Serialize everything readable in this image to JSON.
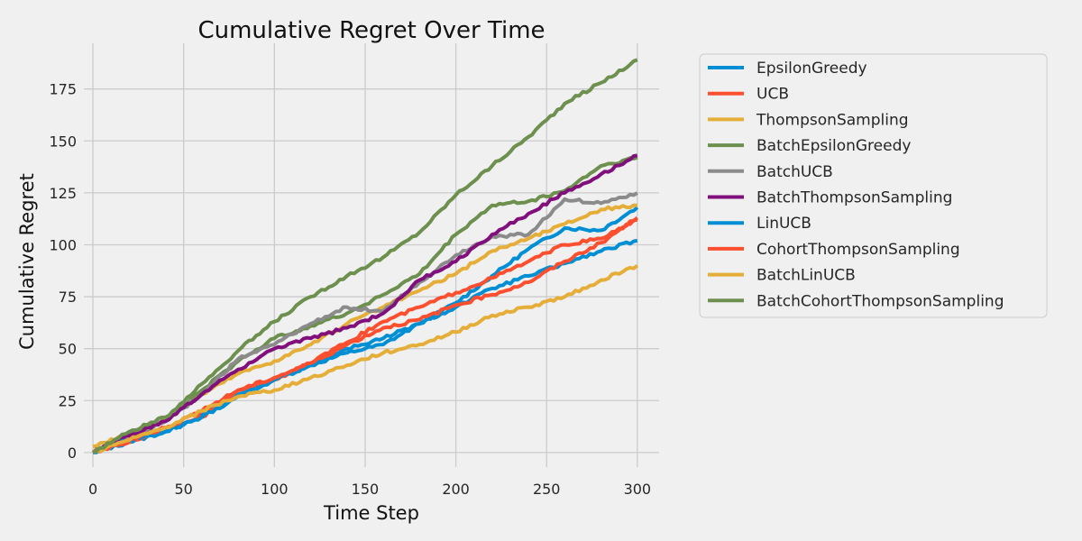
{
  "chart_data": {
    "type": "line",
    "title": "Cumulative Regret Over Time",
    "xlabel": "Time Step",
    "ylabel": "Cumulative Regret",
    "xlim": [
      -5,
      312
    ],
    "ylim": [
      -7,
      197
    ],
    "xticks": [
      0,
      50,
      100,
      150,
      200,
      250,
      300
    ],
    "yticks": [
      0,
      25,
      50,
      75,
      100,
      125,
      150,
      175
    ],
    "grid": true,
    "legend_position": "outside-right",
    "series": [
      {
        "name": "EpsilonGreedy",
        "color": "#008fd5",
        "points": [
          [
            0,
            0
          ],
          [
            20,
            5
          ],
          [
            40,
            10
          ],
          [
            60,
            18
          ],
          [
            80,
            28
          ],
          [
            100,
            35
          ],
          [
            120,
            42
          ],
          [
            140,
            48
          ],
          [
            160,
            52
          ],
          [
            180,
            62
          ],
          [
            200,
            72
          ],
          [
            220,
            85
          ],
          [
            240,
            98
          ],
          [
            260,
            108
          ],
          [
            280,
            107
          ],
          [
            300,
            118
          ]
        ]
      },
      {
        "name": "UCB",
        "color": "#fc4f30",
        "points": [
          [
            0,
            0
          ],
          [
            20,
            5
          ],
          [
            40,
            12
          ],
          [
            60,
            17
          ],
          [
            80,
            30
          ],
          [
            100,
            35
          ],
          [
            120,
            43
          ],
          [
            140,
            53
          ],
          [
            160,
            63
          ],
          [
            180,
            70
          ],
          [
            200,
            77
          ],
          [
            220,
            84
          ],
          [
            240,
            92
          ],
          [
            260,
            100
          ],
          [
            280,
            103
          ],
          [
            300,
            112
          ]
        ]
      },
      {
        "name": "ThompsonSampling",
        "color": "#e5ae38",
        "points": [
          [
            0,
            3
          ],
          [
            20,
            9
          ],
          [
            40,
            16
          ],
          [
            60,
            28
          ],
          [
            80,
            38
          ],
          [
            100,
            44
          ],
          [
            120,
            52
          ],
          [
            140,
            62
          ],
          [
            160,
            70
          ],
          [
            180,
            78
          ],
          [
            200,
            86
          ],
          [
            220,
            97
          ],
          [
            240,
            103
          ],
          [
            260,
            110
          ],
          [
            280,
            117
          ],
          [
            300,
            119
          ]
        ]
      },
      {
        "name": "BatchEpsilonGreedy",
        "color": "#6d904f",
        "points": [
          [
            0,
            0
          ],
          [
            20,
            10
          ],
          [
            40,
            15
          ],
          [
            60,
            30
          ],
          [
            80,
            44
          ],
          [
            100,
            55
          ],
          [
            120,
            61
          ],
          [
            140,
            67
          ],
          [
            160,
            76
          ],
          [
            180,
            86
          ],
          [
            200,
            105
          ],
          [
            220,
            119
          ],
          [
            240,
            121
          ],
          [
            260,
            126
          ],
          [
            280,
            138
          ],
          [
            300,
            142
          ]
        ]
      },
      {
        "name": "BatchUCB",
        "color": "#8b8b8b",
        "points": [
          [
            0,
            0
          ],
          [
            20,
            8
          ],
          [
            40,
            15
          ],
          [
            60,
            28
          ],
          [
            80,
            45
          ],
          [
            100,
            52
          ],
          [
            120,
            62
          ],
          [
            140,
            70
          ],
          [
            160,
            68
          ],
          [
            180,
            82
          ],
          [
            200,
            95
          ],
          [
            220,
            104
          ],
          [
            240,
            105
          ],
          [
            260,
            122
          ],
          [
            280,
            120
          ],
          [
            300,
            125
          ]
        ]
      },
      {
        "name": "BatchThompsonSampling",
        "color": "#810f7c",
        "points": [
          [
            0,
            0
          ],
          [
            20,
            8
          ],
          [
            40,
            15
          ],
          [
            60,
            28
          ],
          [
            80,
            40
          ],
          [
            100,
            50
          ],
          [
            120,
            55
          ],
          [
            140,
            60
          ],
          [
            160,
            67
          ],
          [
            180,
            83
          ],
          [
            200,
            92
          ],
          [
            220,
            105
          ],
          [
            240,
            115
          ],
          [
            260,
            125
          ],
          [
            280,
            134
          ],
          [
            300,
            143
          ]
        ]
      },
      {
        "name": "LinUCB",
        "color": "#008fd5",
        "points": [
          [
            0,
            0
          ],
          [
            20,
            6
          ],
          [
            40,
            10
          ],
          [
            60,
            17
          ],
          [
            80,
            27
          ],
          [
            100,
            35
          ],
          [
            120,
            42
          ],
          [
            140,
            50
          ],
          [
            160,
            55
          ],
          [
            180,
            62
          ],
          [
            200,
            70
          ],
          [
            220,
            79
          ],
          [
            240,
            85
          ],
          [
            260,
            91
          ],
          [
            280,
            97
          ],
          [
            300,
            102
          ]
        ]
      },
      {
        "name": "CohortThompsonSampling",
        "color": "#fc4f30",
        "points": [
          [
            0,
            0
          ],
          [
            20,
            6
          ],
          [
            40,
            12
          ],
          [
            60,
            20
          ],
          [
            80,
            30
          ],
          [
            100,
            36
          ],
          [
            120,
            43
          ],
          [
            140,
            52
          ],
          [
            160,
            60
          ],
          [
            180,
            64
          ],
          [
            200,
            71
          ],
          [
            220,
            76
          ],
          [
            240,
            82
          ],
          [
            260,
            92
          ],
          [
            280,
            101
          ],
          [
            300,
            113
          ]
        ]
      },
      {
        "name": "BatchLinUCB",
        "color": "#e5ae38",
        "points": [
          [
            0,
            0
          ],
          [
            20,
            6
          ],
          [
            40,
            12
          ],
          [
            60,
            20
          ],
          [
            80,
            27
          ],
          [
            100,
            30
          ],
          [
            120,
            36
          ],
          [
            140,
            42
          ],
          [
            160,
            48
          ],
          [
            180,
            52
          ],
          [
            200,
            58
          ],
          [
            220,
            66
          ],
          [
            240,
            70
          ],
          [
            260,
            75
          ],
          [
            280,
            83
          ],
          [
            300,
            90
          ]
        ]
      },
      {
        "name": "BatchCohortThompsonSampling",
        "color": "#6d904f",
        "points": [
          [
            0,
            0
          ],
          [
            20,
            10
          ],
          [
            40,
            17
          ],
          [
            60,
            33
          ],
          [
            80,
            49
          ],
          [
            100,
            63
          ],
          [
            120,
            75
          ],
          [
            140,
            85
          ],
          [
            160,
            94
          ],
          [
            180,
            106
          ],
          [
            200,
            124
          ],
          [
            220,
            138
          ],
          [
            240,
            152
          ],
          [
            260,
            168
          ],
          [
            280,
            178
          ],
          [
            300,
            189
          ]
        ]
      }
    ]
  }
}
